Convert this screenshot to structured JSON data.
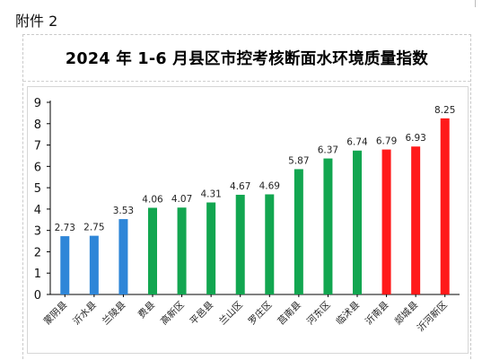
{
  "attachment_label": "附件 2",
  "title": "2024 年 1-6 月县区市控考核断面水环境质量指数",
  "colors": {
    "blue": "#2E86D8",
    "green": "#12A650",
    "red": "#FF1A1A",
    "axis": "#000000",
    "text": "#222222"
  },
  "chart_data": {
    "type": "bar",
    "title": "2024 年 1-6 月县区市控考核断面水环境质量指数",
    "xlabel": "",
    "ylabel": "",
    "ylim": [
      0,
      9
    ],
    "yticks": [
      0,
      1,
      2,
      3,
      4,
      5,
      6,
      7,
      8,
      9
    ],
    "grid": false,
    "legend": "none",
    "categories": [
      "蒙阴县",
      "沂水县",
      "兰陵县",
      "费县",
      "高新区",
      "平邑县",
      "兰山区",
      "罗庄区",
      "莒南县",
      "河东区",
      "临沭县",
      "沂南县",
      "郯城县",
      "沂河新区"
    ],
    "values": [
      2.73,
      2.75,
      3.53,
      4.06,
      4.07,
      4.31,
      4.67,
      4.69,
      5.87,
      6.37,
      6.74,
      6.79,
      6.93,
      8.25
    ],
    "value_labels": [
      "2.73",
      "2.75",
      "3.53",
      "4.06",
      "4.07",
      "4.31",
      "4.67",
      "4.69",
      "5.87",
      "6.37",
      "6.74",
      "6.79",
      "6.93",
      "8.25"
    ],
    "bar_colors": [
      "blue",
      "blue",
      "blue",
      "green",
      "green",
      "green",
      "green",
      "green",
      "green",
      "green",
      "green",
      "red",
      "red",
      "red"
    ]
  }
}
